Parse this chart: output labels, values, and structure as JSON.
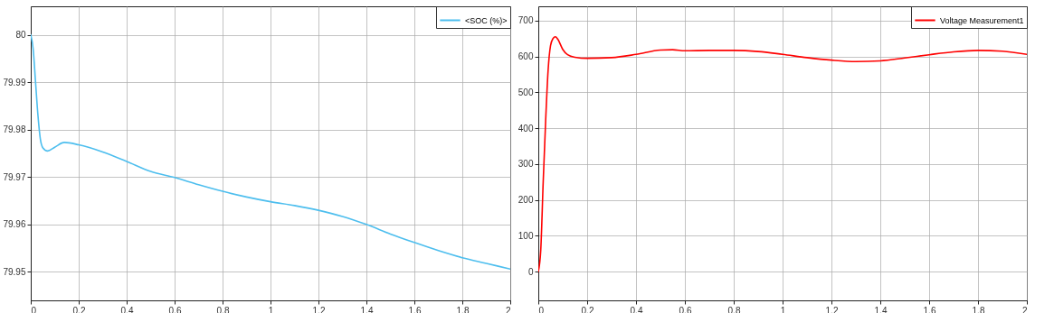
{
  "chart_data": [
    {
      "type": "line",
      "legend": "top right",
      "grid": true,
      "x": [
        0,
        0.01,
        0.02,
        0.03,
        0.04,
        0.05,
        0.07,
        0.1,
        0.14,
        0.2,
        0.3,
        0.4,
        0.5,
        0.6,
        0.7,
        0.8,
        0.9,
        1.0,
        1.1,
        1.2,
        1.3,
        1.4,
        1.5,
        1.6,
        1.7,
        1.8,
        1.9,
        2.0
      ],
      "xlim": [
        0,
        2
      ],
      "xticks": [
        0,
        0.2,
        0.4,
        0.6,
        0.8,
        1,
        1.2,
        1.4,
        1.6,
        1.8,
        2
      ],
      "ylim": [
        79.944,
        80.006
      ],
      "yticks": [
        79.95,
        79.96,
        79.97,
        79.98,
        79.99,
        80
      ],
      "series": [
        {
          "name": "<SOC (%)>",
          "color": "#4dbeee",
          "values": [
            80.0,
            79.997,
            79.99,
            79.983,
            79.978,
            79.9762,
            79.9755,
            79.9763,
            79.9773,
            79.9768,
            79.9753,
            79.9733,
            79.9712,
            79.9699,
            79.9684,
            79.967,
            79.9658,
            79.9648,
            79.964,
            79.963,
            79.9617,
            79.96,
            79.958,
            79.9562,
            79.9545,
            79.953,
            79.9518,
            79.9506
          ]
        }
      ]
    },
    {
      "type": "line",
      "legend": "top right",
      "grid": true,
      "x": [
        0,
        0.01,
        0.02,
        0.03,
        0.04,
        0.05,
        0.06,
        0.07,
        0.08,
        0.1,
        0.12,
        0.15,
        0.2,
        0.3,
        0.4,
        0.5,
        0.55,
        0.6,
        0.7,
        0.8,
        0.9,
        1.0,
        1.1,
        1.2,
        1.3,
        1.4,
        1.5,
        1.6,
        1.7,
        1.8,
        1.9,
        2.0
      ],
      "xlim": [
        0,
        2
      ],
      "xticks": [
        0,
        0.2,
        0.4,
        0.6,
        0.8,
        1,
        1.2,
        1.4,
        1.6,
        1.8,
        2
      ],
      "ylim": [
        -80,
        740
      ],
      "yticks": [
        0,
        100,
        200,
        300,
        400,
        500,
        600,
        700
      ],
      "series": [
        {
          "name": "Voltage Measurement1",
          "color": "#ff0000",
          "values": [
            0,
            60,
            250,
            420,
            560,
            630,
            650,
            655,
            648,
            620,
            605,
            598,
            595,
            597,
            606,
            618,
            619,
            616,
            617,
            617,
            614,
            606,
            597,
            590,
            586,
            588,
            596,
            605,
            613,
            617,
            615,
            606
          ]
        }
      ]
    }
  ]
}
